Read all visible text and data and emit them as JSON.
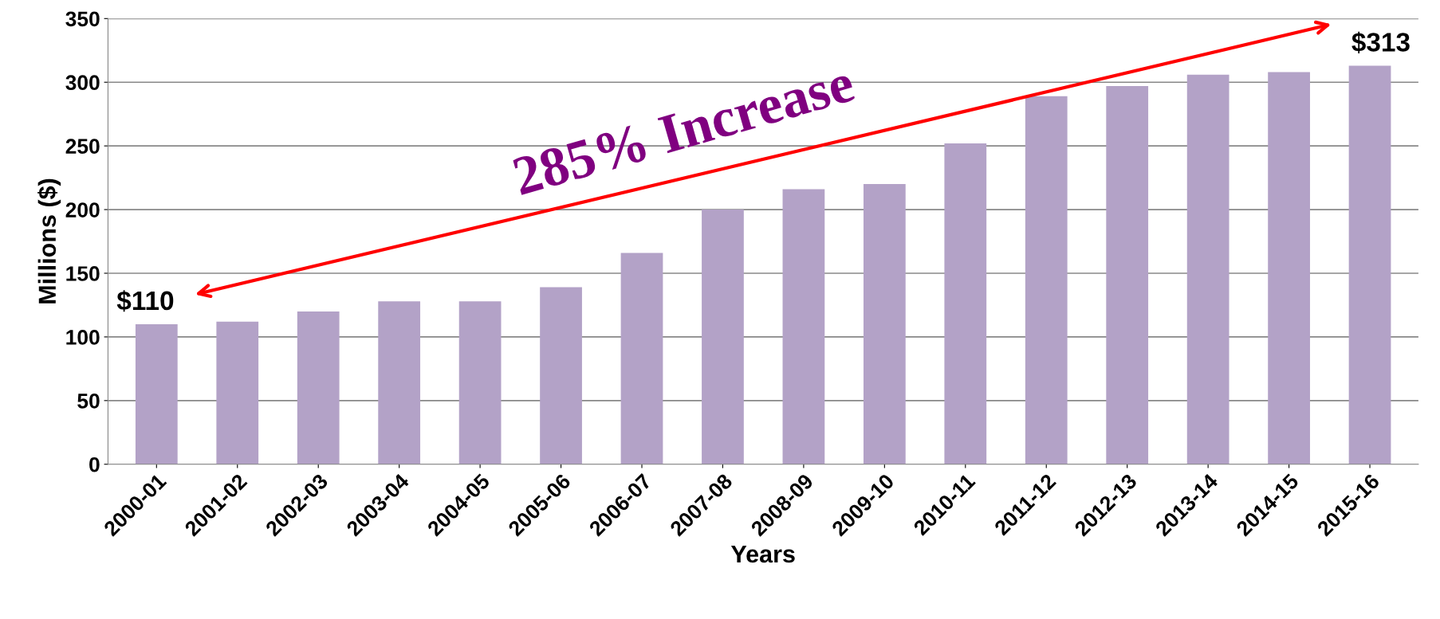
{
  "chart_data": {
    "type": "bar",
    "xlabel": "Years",
    "ylabel": "Millions ($)",
    "categories": [
      "2000-01",
      "2001-02",
      "2002-03",
      "2003-04",
      "2004-05",
      "2005-06",
      "2006-07",
      "2007-08",
      "2008-09",
      "2009-10",
      "2010-11",
      "2011-12",
      "2012-13",
      "2013-14",
      "2014-15",
      "2015-16"
    ],
    "values": [
      110,
      112,
      120,
      128,
      128,
      139,
      166,
      200,
      216,
      220,
      252,
      289,
      297,
      306,
      308,
      313
    ],
    "color": "#b3a2c7",
    "ylim": [
      0,
      350
    ],
    "yticks": [
      0,
      50,
      100,
      150,
      200,
      250,
      300,
      350
    ],
    "grid": "y",
    "annotations": [
      {
        "text": "$110",
        "x": "2000-01",
        "y": 110
      },
      {
        "text": "$313",
        "x": "2015-16",
        "y": 313
      },
      "285% Increase"
    ]
  }
}
